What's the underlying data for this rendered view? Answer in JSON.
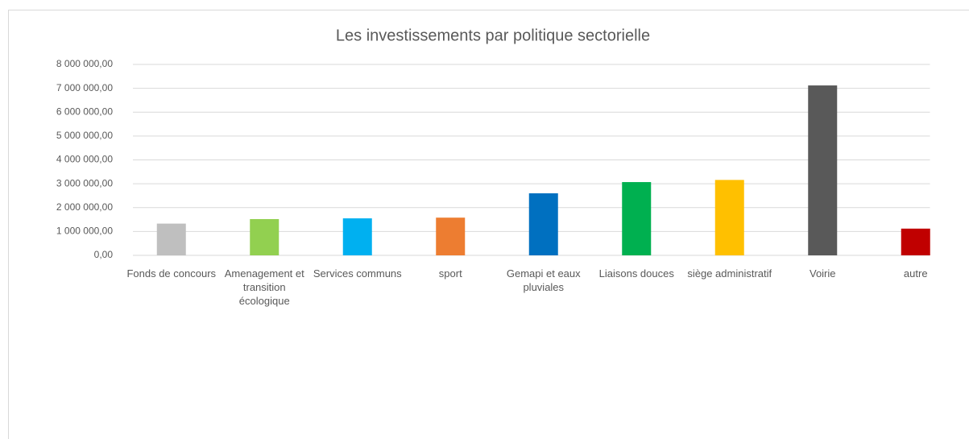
{
  "chart_data": {
    "type": "bar",
    "title": "Les investissements par politique sectorielle",
    "categories": [
      "Fonds de concours",
      "Amenagement et transition écologique",
      "Services communs",
      "sport",
      "Gemapi et eaux pluviales",
      "Liaisons douces",
      "siège administratif",
      "Voirie",
      "autre"
    ],
    "values": [
      1330000,
      1520000,
      1550000,
      1580000,
      2600000,
      3070000,
      3160000,
      7120000,
      1120000
    ],
    "colors": [
      "#bfbfbf",
      "#92d050",
      "#00b0f0",
      "#ed7d31",
      "#0070c0",
      "#00b050",
      "#ffc000",
      "#595959",
      "#c00000"
    ],
    "ylim": [
      0,
      8000000
    ],
    "yticks": [
      {
        "value": 0,
        "label": "0,00"
      },
      {
        "value": 1000000,
        "label": "1 000 000,00"
      },
      {
        "value": 2000000,
        "label": "2 000 000,00"
      },
      {
        "value": 3000000,
        "label": "3 000 000,00"
      },
      {
        "value": 4000000,
        "label": "4 000 000,00"
      },
      {
        "value": 5000000,
        "label": "5 000 000,00"
      },
      {
        "value": 6000000,
        "label": "6 000 000,00"
      },
      {
        "value": 7000000,
        "label": "7 000 000,00"
      },
      {
        "value": 8000000,
        "label": "8 000 000,00"
      }
    ],
    "grid": true
  }
}
